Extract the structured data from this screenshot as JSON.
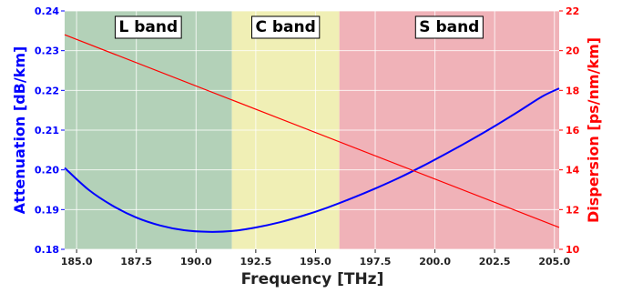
{
  "chart_data": {
    "type": "line",
    "xlabel": "Frequency [THz]",
    "ylabel_left": "Attenuation [dB/km]",
    "ylabel_right": "Dispersion [ps/nm/km]",
    "xlim": [
      184.5,
      205.2
    ],
    "ylim_left": [
      0.18,
      0.24
    ],
    "ylim_right": [
      10,
      22
    ],
    "x_ticks": [
      185.0,
      187.5,
      190.0,
      192.5,
      195.0,
      197.5,
      200.0,
      202.5,
      205.0
    ],
    "x_tick_labels": [
      "185.0",
      "187.5",
      "190.0",
      "192.5",
      "195.0",
      "197.5",
      "200.0",
      "202.5",
      "205.0"
    ],
    "y_left_ticks": [
      0.18,
      0.19,
      0.2,
      0.21,
      0.22,
      0.23,
      0.24
    ],
    "y_left_tick_labels": [
      "0.18",
      "0.19",
      "0.20",
      "0.21",
      "0.22",
      "0.23",
      "0.24"
    ],
    "y_right_ticks": [
      10,
      12,
      14,
      16,
      18,
      20,
      22
    ],
    "y_right_tick_labels": [
      "10",
      "12",
      "14",
      "16",
      "18",
      "20",
      "22"
    ],
    "grid": true,
    "bands": [
      {
        "label": "L band",
        "x_start": 184.5,
        "x_end": 191.5,
        "color": "#b3d1b8"
      },
      {
        "label": "C band",
        "x_start": 191.5,
        "x_end": 196.0,
        "color": "#f0efb5"
      },
      {
        "label": "S band",
        "x_start": 196.0,
        "x_end": 205.2,
        "color": "#f0b2b8"
      }
    ],
    "series": [
      {
        "axis": "left",
        "color": "#0000ff",
        "x": [
          184.5,
          185.5,
          186.5,
          187.5,
          188.5,
          189.5,
          190.5,
          191.5,
          192.5,
          193.5,
          194.5,
          195.5,
          196.5,
          197.5,
          198.5,
          199.5,
          200.5,
          201.5,
          202.5,
          203.5,
          204.5,
          205.2
        ],
        "values": [
          0.2005,
          0.195,
          0.191,
          0.188,
          0.186,
          0.1848,
          0.1844,
          0.1846,
          0.1855,
          0.1868,
          0.1885,
          0.1905,
          0.1928,
          0.1953,
          0.198,
          0.201,
          0.2042,
          0.2075,
          0.211,
          0.2147,
          0.2185,
          0.2205
        ]
      },
      {
        "axis": "right",
        "color": "#ff0000",
        "x": [
          184.5,
          205.2
        ],
        "values": [
          20.8,
          11.1
        ]
      }
    ]
  }
}
